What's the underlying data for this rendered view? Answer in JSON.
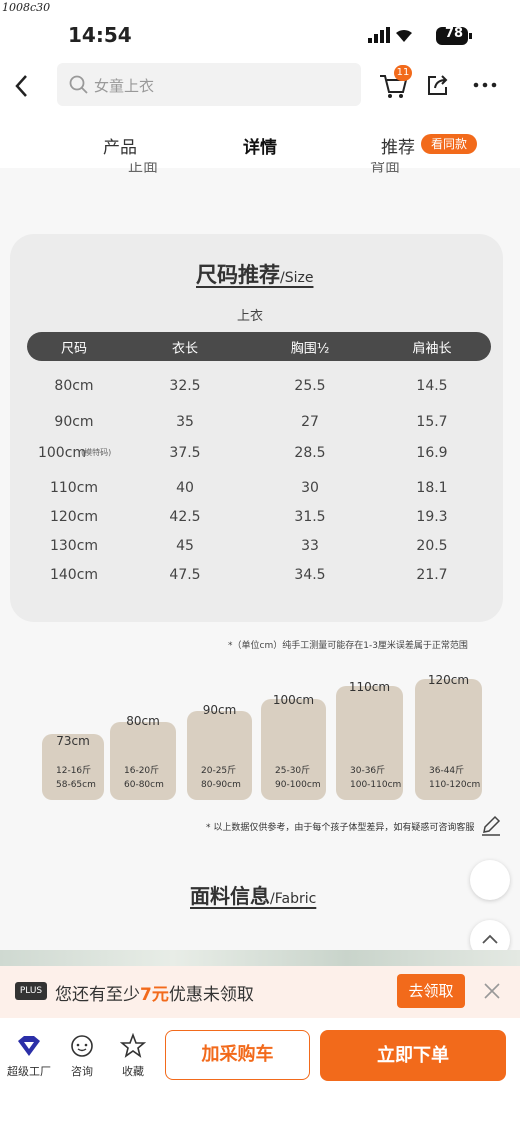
{
  "watermark": "1008c30",
  "status_bar": {
    "time": "14:54",
    "battery": "78"
  },
  "nav": {
    "search_placeholder": "女童上衣",
    "cart_badge": "11"
  },
  "tabs": [
    "产品",
    "详情",
    "推荐"
  ],
  "tab_badge": "看同款",
  "partial_labels": [
    "正面",
    "背面"
  ],
  "size_card": {
    "title": "尺码推荐",
    "title_en": "/Size",
    "subtitle": "上衣",
    "headers": [
      "尺码",
      "衣长",
      "胸围½",
      "肩袖长"
    ],
    "rows": [
      [
        "80cm",
        "32.5",
        "25.5",
        "14.5"
      ],
      [
        "90cm",
        "35",
        "27",
        "15.7"
      ],
      [
        "100cm",
        "37.5",
        "28.5",
        "16.9"
      ],
      [
        "110cm",
        "40",
        "30",
        "18.1"
      ],
      [
        "120cm",
        "42.5",
        "31.5",
        "19.3"
      ],
      [
        "130cm",
        "45",
        "33",
        "20.5"
      ],
      [
        "140cm",
        "47.5",
        "34.5",
        "21.7"
      ]
    ],
    "model_tag": "(模特码)"
  },
  "size_note": "*（单位cm）纯手工测量可能存在1-3厘米误差属于正常范围",
  "blocks": [
    {
      "size": "73cm",
      "weight": "12-16斤",
      "height": "58-65cm"
    },
    {
      "size": "80cm",
      "weight": "16-20斤",
      "height": "60-80cm"
    },
    {
      "size": "90cm",
      "weight": "20-25斤",
      "height": "80-90cm"
    },
    {
      "size": "100cm",
      "weight": "25-30斤",
      "height": "90-100cm"
    },
    {
      "size": "110cm",
      "weight": "30-36斤",
      "height": "100-110cm"
    },
    {
      "size": "120cm",
      "weight": "36-44斤",
      "height": "110-120cm"
    }
  ],
  "blocks_note": "* 以上数据仅供参考，由于每个孩子体型差异，如有疑惑可咨询客服",
  "fabric": {
    "title": "面料信息",
    "title_en": "/Fabric"
  },
  "promo": {
    "tag": "PLUS",
    "text_before": "您还有至少",
    "amount": "7元",
    "text_after": "优惠未领取",
    "button": "去领取"
  },
  "bottom": {
    "icons": [
      "超级工厂",
      "咨询",
      "收藏"
    ],
    "add_cart": "加采购车",
    "buy": "立即下单"
  }
}
